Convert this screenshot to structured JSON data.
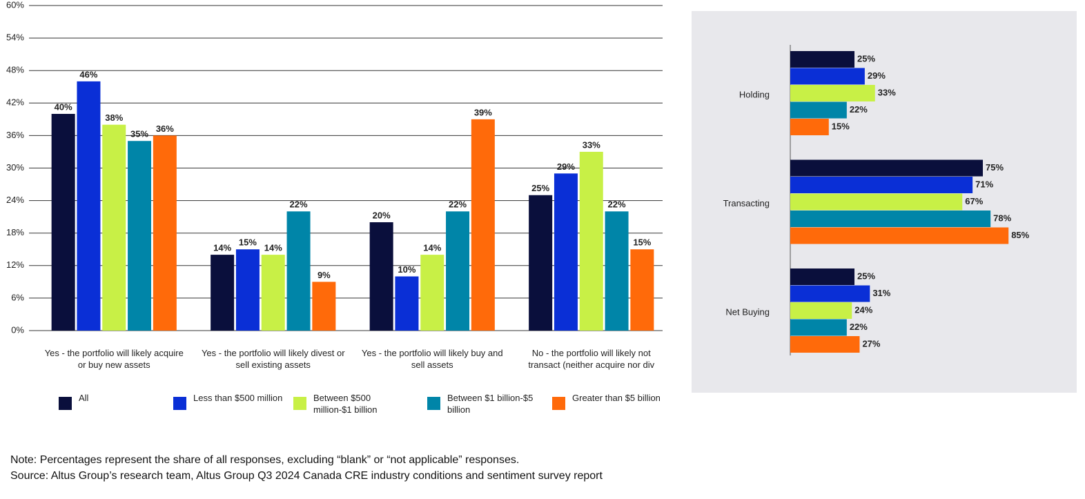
{
  "chart_data": [
    {
      "type": "bar",
      "categories": [
        "Yes - the portfolio will likely acquire or buy new assets",
        "Yes - the portfolio will likely divest or sell existing assets",
        "Yes - the portfolio will likely buy and sell assets",
        "No - the portfolio will likely not transact (neither acquire nor div"
      ],
      "series": [
        {
          "name": "All",
          "color": "#0a0f3c",
          "values": [
            40,
            14,
            20,
            25
          ],
          "value_labels": [
            "40%",
            "14%",
            "20%",
            "25%"
          ]
        },
        {
          "name": "Less than $500 million",
          "color": "#0a2fd6",
          "values": [
            46,
            15,
            10,
            29
          ],
          "value_labels": [
            "46%",
            "15%",
            "10%",
            "29%"
          ]
        },
        {
          "name": "Between $500 million-$1 billion",
          "color": "#c8f046",
          "values": [
            38,
            14,
            14,
            33
          ],
          "value_labels": [
            "38%",
            "14%",
            "14%",
            "33%"
          ]
        },
        {
          "name": "Between $1 billion-$5 billion",
          "color": "#0085a8",
          "values": [
            35,
            22,
            22,
            22
          ],
          "value_labels": [
            "35%",
            "22%",
            "22%",
            "22%"
          ]
        },
        {
          "name": "Greater than $5 billion",
          "color": "#ff6a0a",
          "values": [
            36,
            9,
            39,
            15
          ],
          "value_labels": [
            "36%",
            "9%",
            "39%",
            "15%"
          ]
        }
      ],
      "ylim": [
        0,
        60
      ],
      "yticks": [
        {
          "value": 0,
          "label": "0%"
        },
        {
          "value": 6,
          "label": "6%"
        },
        {
          "value": 12,
          "label": "12%"
        },
        {
          "value": 18,
          "label": "18%"
        },
        {
          "value": 24,
          "label": "24%"
        },
        {
          "value": 30,
          "label": "30%"
        },
        {
          "value": 36,
          "label": "36%"
        },
        {
          "value": 42,
          "label": "42%"
        },
        {
          "value": 48,
          "label": "48%"
        },
        {
          "value": 54,
          "label": "54%"
        },
        {
          "value": 60,
          "label": "60%"
        }
      ],
      "grid": true,
      "note": "Note: Percentages represent the share of all responses, excluding “blank” or “not applicable” responses.",
      "source": "Source: Altus Group’s research team, Altus Group Q3 2024 Canada CRE industry conditions and sentiment survey report"
    },
    {
      "type": "hbar",
      "categories": [
        "Holding",
        "Transacting",
        "Net Buying"
      ],
      "series": [
        {
          "color": "#0a0f3c",
          "values": [
            25,
            75,
            25
          ],
          "value_labels": [
            "25%",
            "75%",
            "25%"
          ]
        },
        {
          "color": "#0a2fd6",
          "values": [
            29,
            71,
            31
          ],
          "value_labels": [
            "29%",
            "71%",
            "31%"
          ]
        },
        {
          "color": "#c8f046",
          "values": [
            33,
            67,
            24
          ],
          "value_labels": [
            "33%",
            "67%",
            "24%"
          ]
        },
        {
          "color": "#0085a8",
          "values": [
            22,
            78,
            22
          ],
          "value_labels": [
            "22%",
            "78%",
            "22%"
          ]
        },
        {
          "color": "#ff6a0a",
          "values": [
            15,
            85,
            27
          ],
          "value_labels": [
            "15%",
            "85%",
            "27%"
          ]
        }
      ]
    }
  ]
}
